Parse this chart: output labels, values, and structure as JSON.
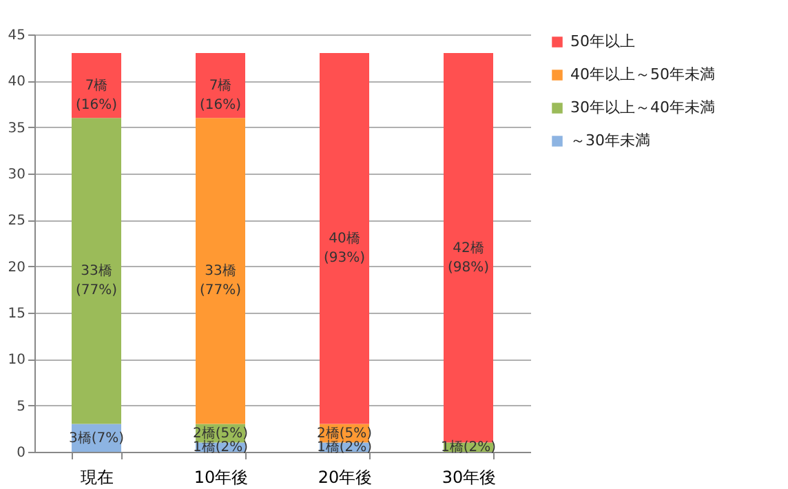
{
  "chart_data": {
    "type": "bar",
    "stacked": true,
    "categories": [
      "現在",
      "10年後",
      "20年後",
      "30年後"
    ],
    "series": [
      {
        "name": "～30年未満",
        "color": "#8db4e2",
        "values": [
          3,
          1,
          1,
          0
        ],
        "value_labels": [
          "3橋(7%)",
          "1橋(2%)",
          "1橋(2%)",
          null
        ]
      },
      {
        "name": "30年以上～40年未満",
        "color": "#9bbb59",
        "values": [
          33,
          2,
          0,
          1
        ],
        "value_labels": [
          "33橋\n(77%)",
          "2橋(5%)",
          null,
          "1橋(2%)"
        ]
      },
      {
        "name": "40年以上～50年未満",
        "color": "#ff9933",
        "values": [
          0,
          33,
          2,
          0
        ],
        "value_labels": [
          null,
          "33橋\n(77%)",
          "2橋(5%)",
          null
        ]
      },
      {
        "name": "50年以上",
        "color": "#ff5050",
        "values": [
          7,
          7,
          40,
          42
        ],
        "value_labels": [
          "7橋\n(16%)",
          "7橋\n(16%)",
          "40橋\n(93%)",
          "42橋\n(98%)"
        ]
      }
    ],
    "ylim": [
      0,
      45
    ],
    "yticks": [
      0,
      5,
      10,
      15,
      20,
      25,
      30,
      35,
      40,
      45
    ],
    "grid": "y",
    "legend": "right"
  }
}
